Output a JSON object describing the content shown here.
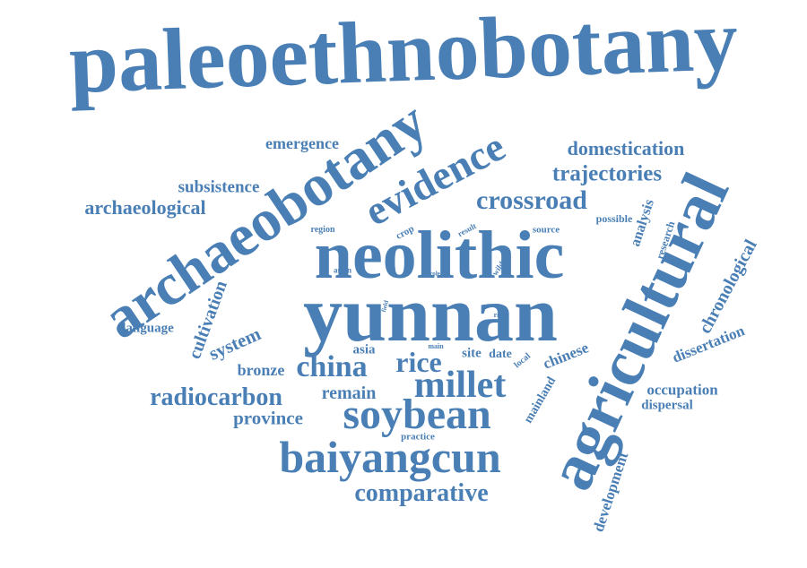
{
  "cloud": {
    "color": "#4a7fb5",
    "words": [
      "paleoethnobotany",
      "yunnan",
      "neolithic",
      "agricultural",
      "archaeobotany",
      "evidence",
      "baiyangcun",
      "soybean",
      "millet",
      "crossroad",
      "trajectories",
      "domestication",
      "china",
      "rice",
      "radiocarbon",
      "comparative",
      "cultivation",
      "chronological",
      "archaeological",
      "subsistence",
      "emergence",
      "system",
      "remain",
      "province",
      "bronze",
      "dissertation",
      "occupation",
      "dispersal",
      "development",
      "chinese",
      "mainland",
      "analysis",
      "research",
      "possible",
      "language",
      "region",
      "crop",
      "result",
      "source",
      "asia",
      "site",
      "date",
      "local",
      "main",
      "river",
      "wild",
      "role",
      "field",
      "asian",
      "practice"
    ]
  }
}
